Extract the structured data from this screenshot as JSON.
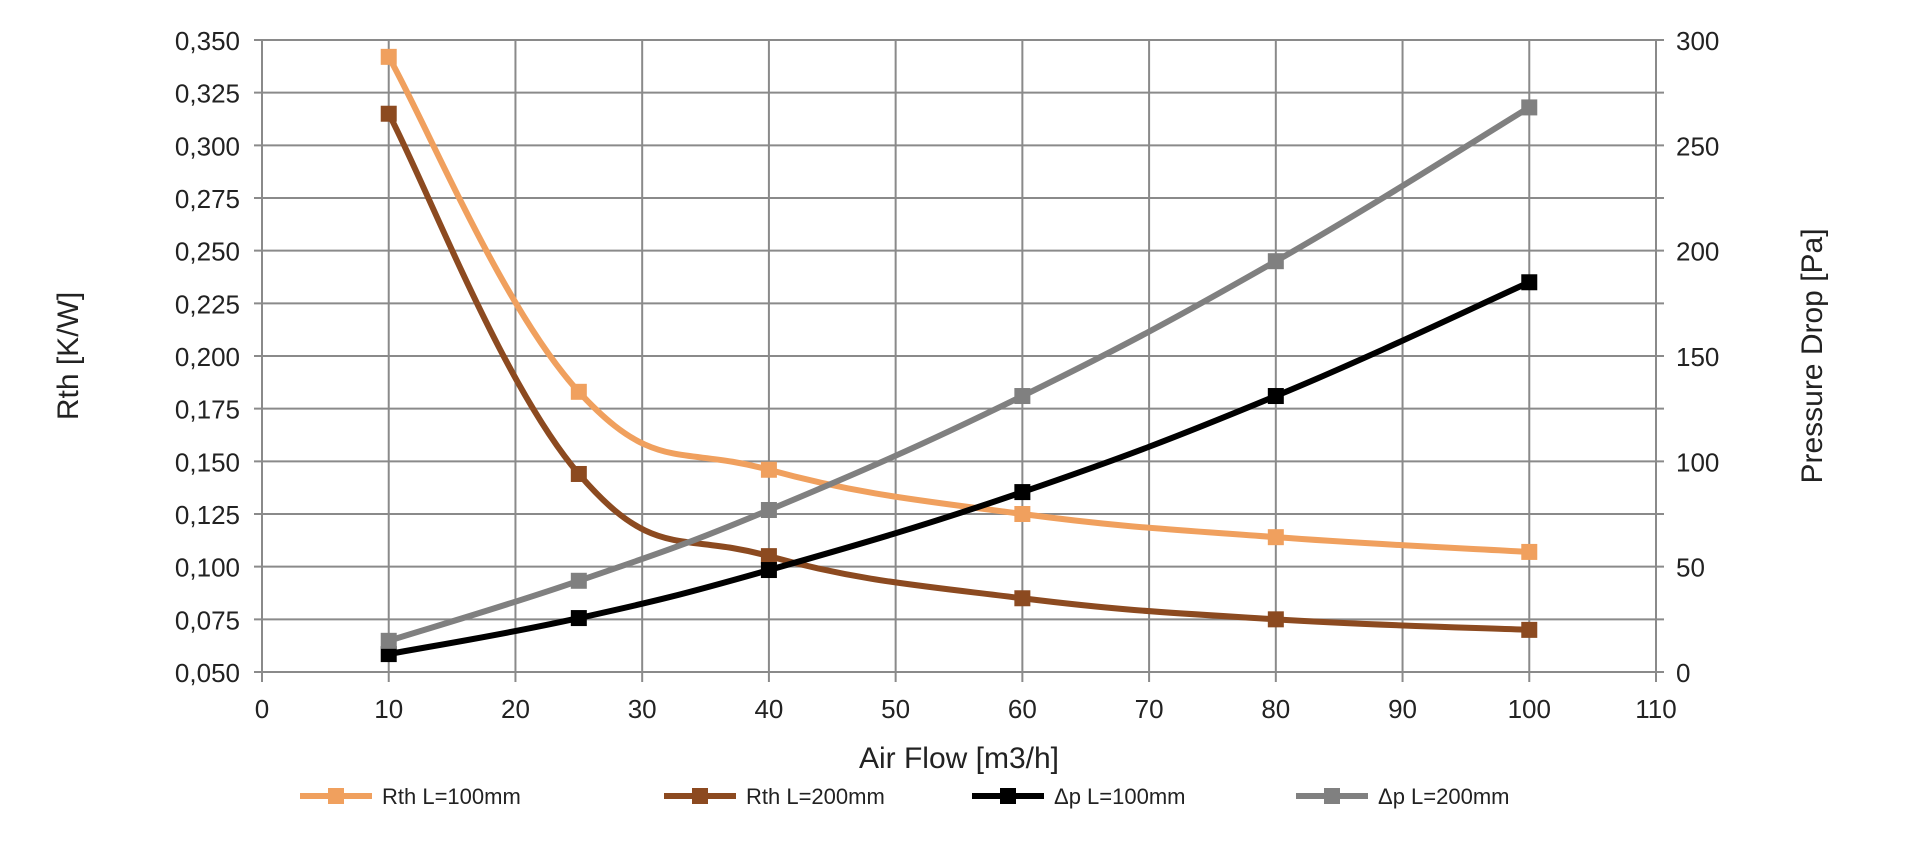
{
  "chart_data": {
    "type": "line",
    "title": "",
    "xlabel": "Air Flow [m3/h]",
    "ylabel": "Rth [K/W]",
    "y2label": "Pressure Drop [Pa]",
    "xlim": [
      0,
      110
    ],
    "xticks": [
      0,
      10,
      20,
      30,
      40,
      50,
      60,
      70,
      80,
      90,
      100,
      110
    ],
    "ylim": [
      0.05,
      0.35
    ],
    "yticks": [
      "0,050",
      "0,075",
      "0,100",
      "0,125",
      "0,150",
      "0,175",
      "0,200",
      "0,225",
      "0,250",
      "0,275",
      "0,300",
      "0,325",
      "0,350"
    ],
    "y2lim": [
      0,
      300
    ],
    "y2ticks": [
      "0",
      "50",
      "100",
      "150",
      "200",
      "250",
      "300"
    ],
    "grid": true,
    "legend_position": "bottom",
    "x": [
      10,
      25,
      40,
      60,
      80,
      100
    ],
    "series": [
      {
        "name": "Rth L=100mm",
        "axis": "left",
        "color": "#F0A05E",
        "values": [
          0.342,
          0.183,
          0.146,
          0.125,
          0.114,
          0.107
        ]
      },
      {
        "name": "Rth L=200mm",
        "axis": "left",
        "color": "#8C4A20",
        "values": [
          0.315,
          0.144,
          0.105,
          0.085,
          0.075,
          0.07
        ]
      },
      {
        "name": "Δp L=100mm",
        "axis": "right",
        "color": "#000000",
        "values": [
          8.5,
          25.6,
          48.4,
          85.4,
          131,
          185
        ]
      },
      {
        "name": "Δp L=200mm",
        "axis": "right",
        "color": "#808080",
        "values": [
          14.8,
          43.3,
          76.9,
          131,
          195,
          268
        ]
      }
    ]
  }
}
